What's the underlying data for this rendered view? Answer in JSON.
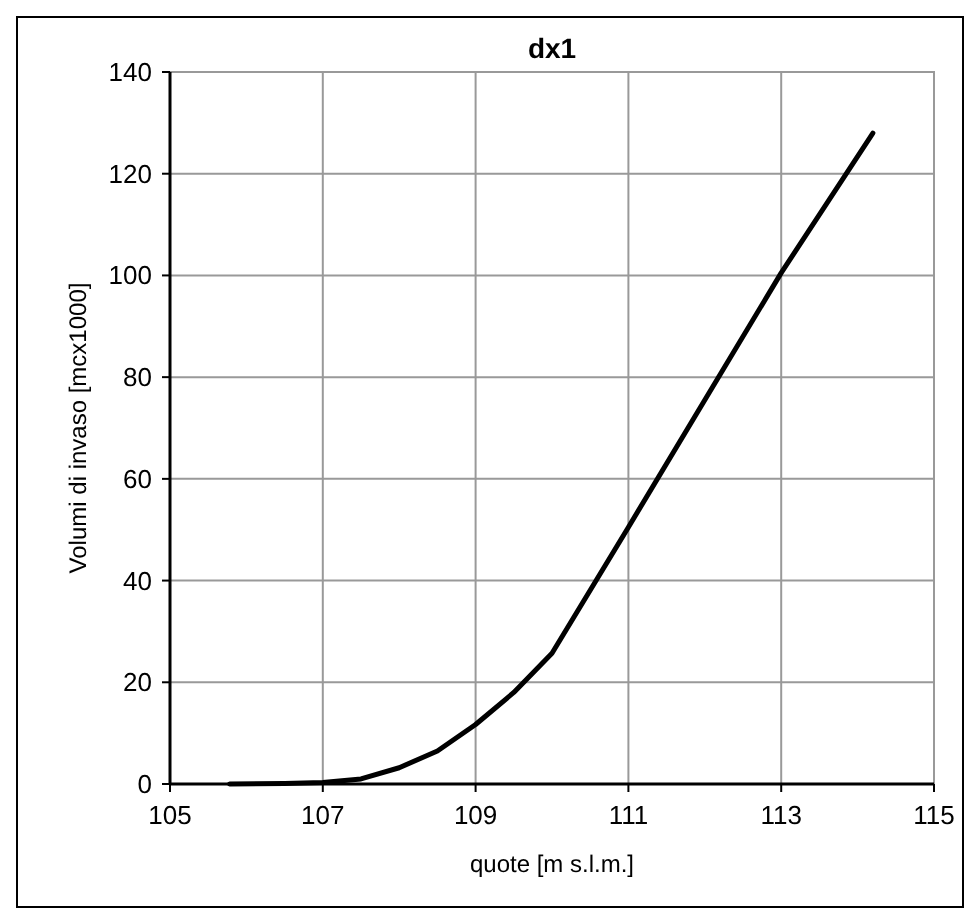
{
  "chart_data": {
    "type": "line",
    "title": "dx1",
    "xlabel": "quote [m s.l.m.]",
    "ylabel": "Volumi di invaso [mcx1000]",
    "x": [
      105.78,
      106.5,
      107,
      107.5,
      108,
      108.5,
      109,
      109.5,
      110,
      111,
      112,
      113,
      114.2
    ],
    "series": [
      {
        "color": "#000000",
        "values": [
          0,
          0.1,
          0.3,
          1,
          3.2,
          6.5,
          11.7,
          18,
          25.7,
          50.5,
          75.5,
          100.5,
          128
        ]
      }
    ],
    "xlim": [
      105,
      115
    ],
    "xticks": [
      105,
      107,
      109,
      111,
      113,
      115
    ],
    "ylim": [
      0,
      140
    ],
    "yticks": [
      0,
      20,
      40,
      60,
      80,
      100,
      120,
      140
    ],
    "grid": true,
    "marker": "none",
    "line_style": "solid"
  }
}
